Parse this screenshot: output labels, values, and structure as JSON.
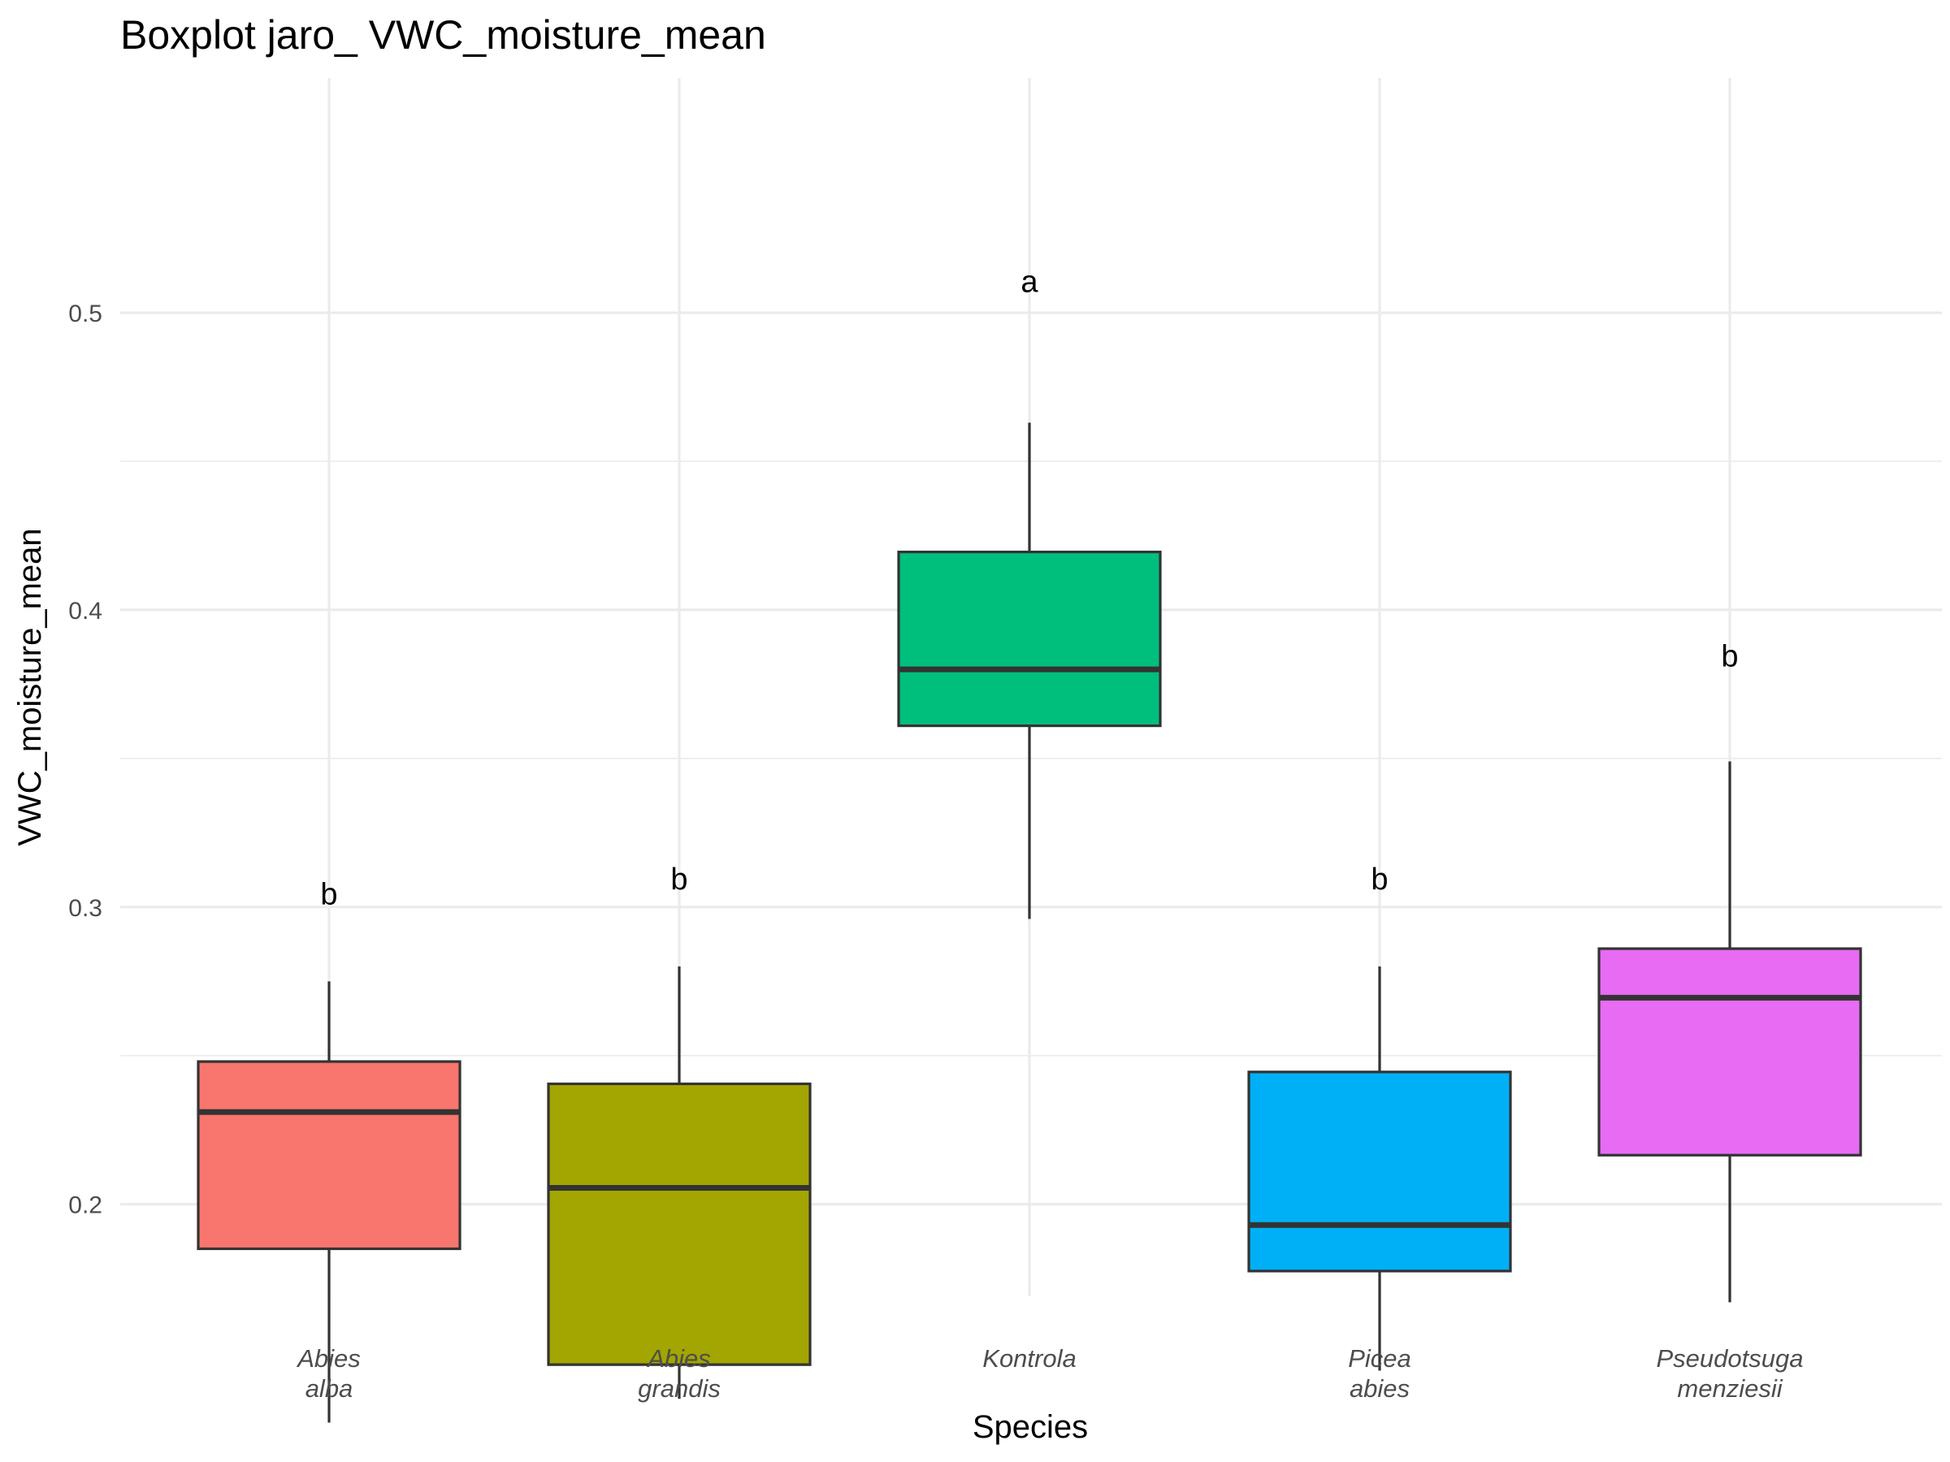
{
  "chart_data": {
    "type": "boxplot",
    "title": "Boxplot jaro_ VWC_moisture_mean",
    "xlabel": "Species",
    "ylabel": "VWC_moisture_mean",
    "ylim": [
      0.12,
      0.52
    ],
    "y_ticks": [
      0.2,
      0.3,
      0.4,
      0.5
    ],
    "y_tick_labels": [
      "0.2",
      "0.3",
      "0.4",
      "0.5"
    ],
    "grid": true,
    "legend": "none",
    "categories": [
      {
        "label_lines": [
          "Abies",
          "alba"
        ],
        "lower_whisker": 0.1265,
        "q1": 0.185,
        "median": 0.231,
        "q3": 0.248,
        "upper_whisker": 0.275,
        "group_letter": "b",
        "letter_y": 0.3045,
        "color": "#F8766D"
      },
      {
        "label_lines": [
          "Abies",
          "grandis"
        ],
        "lower_whisker": 0.1345,
        "q1": 0.146,
        "median": 0.2055,
        "q3": 0.2405,
        "upper_whisker": 0.28,
        "group_letter": "b",
        "letter_y": 0.3095,
        "color": "#A3A500"
      },
      {
        "label_lines": [
          "Kontrola"
        ],
        "lower_whisker": 0.296,
        "q1": 0.361,
        "median": 0.38,
        "q3": 0.4195,
        "upper_whisker": 0.463,
        "group_letter": "a",
        "letter_y": 0.5105,
        "color": "#00BF7D"
      },
      {
        "label_lines": [
          "Picea",
          "abies"
        ],
        "lower_whisker": 0.144,
        "q1": 0.1775,
        "median": 0.193,
        "q3": 0.2445,
        "upper_whisker": 0.28,
        "group_letter": "b",
        "letter_y": 0.3095,
        "color": "#00B0F6"
      },
      {
        "label_lines": [
          "Pseudotsuga",
          "menziesii"
        ],
        "lower_whisker": 0.167,
        "q1": 0.2165,
        "median": 0.2695,
        "q3": 0.286,
        "upper_whisker": 0.349,
        "group_letter": "b",
        "letter_y": 0.3845,
        "color": "#E76BF3"
      }
    ]
  }
}
